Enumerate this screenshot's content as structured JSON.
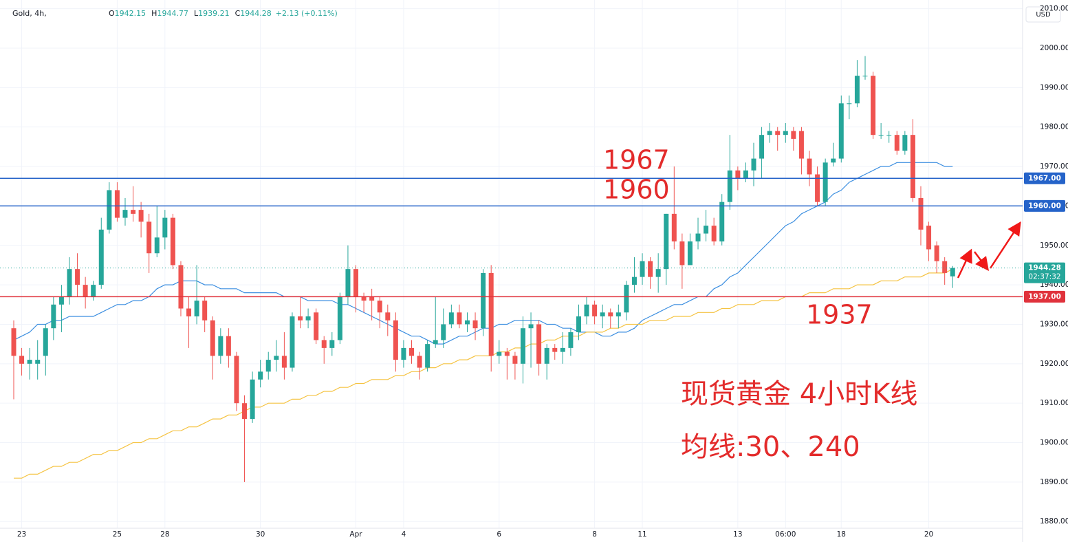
{
  "header": {
    "symbol": "Gold, 4h,",
    "ohlc": [
      [
        "O",
        "1942.15"
      ],
      [
        "H",
        "1944.77"
      ],
      [
        "L",
        "1939.21"
      ],
      [
        "C",
        "1944.28"
      ]
    ],
    "change": "+2.13 (+0.11%)"
  },
  "chart_data": {
    "type": "candlestick",
    "currency": "USD",
    "categories": [
      null,
      "23",
      null,
      null,
      null,
      null,
      null,
      null,
      null,
      null,
      null,
      null,
      null,
      "25",
      null,
      null,
      null,
      null,
      null,
      "28",
      null,
      null,
      null,
      null,
      null,
      null,
      null,
      null,
      null,
      null,
      null,
      "30",
      null,
      null,
      null,
      null,
      null,
      null,
      null,
      null,
      null,
      null,
      null,
      "Apr",
      null,
      null,
      null,
      null,
      null,
      "4",
      null,
      null,
      null,
      null,
      null,
      null,
      null,
      null,
      null,
      null,
      null,
      "6",
      null,
      null,
      null,
      null,
      null,
      null,
      null,
      null,
      null,
      null,
      null,
      "8",
      null,
      null,
      null,
      null,
      null,
      "11",
      null,
      null,
      null,
      null,
      null,
      null,
      null,
      null,
      null,
      null,
      null,
      "13",
      null,
      null,
      null,
      null,
      null,
      "06:00",
      null,
      null,
      null,
      null,
      null,
      null,
      "18",
      null,
      null,
      null,
      null,
      null,
      null,
      null,
      null,
      null,
      null,
      "20",
      null,
      null,
      null
    ],
    "open": [
      1929,
      1922,
      1920,
      1920,
      1922,
      1929,
      1935,
      1937,
      1944,
      1940,
      1937,
      1940,
      1954,
      1964,
      1957,
      1959,
      1959,
      1956,
      1948,
      1952,
      1957,
      1945,
      1934,
      1932,
      1936,
      1931,
      1922,
      1927,
      1922,
      1910,
      1906,
      1916,
      1918,
      1921,
      1922,
      1919,
      1932,
      1931,
      1933,
      1926,
      1924,
      1926,
      1937,
      1944,
      1937,
      1937,
      1936,
      1933,
      1931,
      1921,
      1924,
      1922,
      1919,
      1925,
      1926,
      1930,
      1933,
      1930,
      1931,
      1929,
      1943,
      1922,
      1923,
      1922,
      1920,
      1929,
      1930,
      1920,
      1924,
      1923,
      1924,
      1928,
      1932,
      1935,
      1932,
      1933,
      1932,
      1933,
      1940,
      1942,
      1946,
      1942,
      1944,
      1958,
      1951,
      1945,
      1951,
      1953,
      1955,
      1951,
      1961,
      1969,
      1967,
      1969,
      1972,
      1978,
      1979,
      1978,
      1979,
      1979,
      1972,
      1968,
      1961,
      1971,
      1972,
      1986,
      1986,
      1993,
      1993,
      1978,
      1978,
      1978,
      1974,
      1978,
      1962,
      1955,
      1950,
      1946,
      1942.15
    ],
    "high": [
      1931,
      1924,
      1924,
      1926,
      1930,
      1937,
      1940,
      1947,
      1948,
      1942,
      1941,
      1957,
      1966,
      1966,
      1962,
      1965,
      1961,
      1958,
      1960,
      1959,
      1958,
      1946,
      1937,
      1945,
      1937,
      1932,
      1929,
      1929,
      1923,
      1912,
      1918,
      1921,
      1923,
      1926,
      1928,
      1933,
      1937,
      1934,
      1934,
      1927,
      1928,
      1938,
      1950,
      1945,
      1938,
      1939,
      1937,
      1935,
      1933,
      1926,
      1926,
      1923,
      1926,
      1937,
      1934,
      1935,
      1935,
      1933,
      1933,
      1944,
      1945,
      1926,
      1924,
      1923,
      1932,
      1933,
      1931,
      1925,
      1925,
      1928,
      1929,
      1935,
      1937,
      1936,
      1935,
      1934,
      1935,
      1941,
      1947,
      1948,
      1947,
      1948,
      1958,
      1970,
      1953,
      1953,
      1957,
      1959,
      1957,
      1963,
      1978,
      1970,
      1971,
      1976,
      1980,
      1981,
      1980,
      1981,
      1980,
      1980,
      1974,
      1970,
      1972,
      1976,
      1988,
      1988,
      1997,
      1998,
      1994,
      1981,
      1979,
      1979,
      1979,
      1982,
      1965,
      1956,
      1951,
      1947,
      1944.77
    ],
    "low": [
      1911,
      1917,
      1916,
      1916,
      1917,
      1926,
      1928,
      1935,
      1937,
      1934,
      1936,
      1939,
      1953,
      1956,
      1955,
      1956,
      1952,
      1943,
      1947,
      1949,
      1944,
      1932,
      1924,
      1930,
      1928,
      1916,
      1920,
      1919,
      1908,
      1890,
      1905,
      1914,
      1916,
      1918,
      1916,
      1918,
      1929,
      1929,
      1925,
      1920,
      1922,
      1925,
      1935,
      1933,
      1933,
      1931,
      1929,
      1927,
      1918,
      1919,
      1920,
      1916,
      1918,
      1924,
      1924,
      1929,
      1929,
      1928,
      1926,
      1927,
      1918,
      1920,
      1916,
      1916,
      1915,
      1919,
      1917,
      1916,
      1921,
      1920,
      1922,
      1926,
      1930,
      1930,
      1929,
      1929,
      1929,
      1931,
      1938,
      1940,
      1939,
      1938,
      1940,
      1949,
      1939,
      1945,
      1949,
      1951,
      1950,
      1950,
      1959,
      1964,
      1966,
      1965,
      1967,
      1976,
      1974,
      1976,
      1974,
      1968,
      1965,
      1960,
      1960,
      1970,
      1971,
      1982,
      1985,
      1992,
      1977,
      1977,
      1976,
      1973,
      1973,
      1961,
      1950,
      1946,
      1943,
      1940,
      1939.21
    ],
    "close": [
      1922,
      1920,
      1921,
      1921,
      1929,
      1935,
      1937,
      1944,
      1940,
      1937,
      1940,
      1954,
      1964,
      1957,
      1959,
      1958,
      1956,
      1948,
      1952,
      1957,
      1945,
      1934,
      1932,
      1936,
      1931,
      1922,
      1927,
      1922,
      1910,
      1906,
      1916,
      1918,
      1921,
      1922,
      1919,
      1932,
      1931,
      1932,
      1926,
      1924,
      1926,
      1937,
      1944,
      1937,
      1936,
      1936,
      1933,
      1931,
      1921,
      1924,
      1922,
      1919,
      1925,
      1926,
      1930,
      1933,
      1930,
      1931,
      1929,
      1943,
      1922,
      1923,
      1922,
      1920,
      1929,
      1930,
      1920,
      1924,
      1923,
      1924,
      1928,
      1932,
      1935,
      1932,
      1933,
      1932,
      1933,
      1940,
      1942,
      1946,
      1942,
      1944,
      1958,
      1951,
      1945,
      1951,
      1953,
      1955,
      1951,
      1961,
      1969,
      1967,
      1969,
      1972,
      1978,
      1979,
      1978,
      1979,
      1977,
      1972,
      1968,
      1961,
      1971,
      1972,
      1986,
      1986,
      1993,
      1993,
      1978,
      1978,
      1978,
      1974,
      1978,
      1962,
      1954,
      1949,
      1946,
      1943,
      1944.28
    ],
    "up_color": "#26a69a",
    "down_color": "#ef5350",
    "series": [
      {
        "color": "#3b8ee0",
        "values": [
          1926,
          1927,
          1928,
          1930,
          1930,
          1931,
          1931,
          1932,
          1932,
          1932,
          1932,
          1933,
          1934,
          1935,
          1935,
          1936,
          1936,
          1937,
          1939,
          1940,
          1940,
          1941,
          1941,
          1941,
          1940,
          1940,
          1939,
          1939,
          1939,
          1938,
          1938,
          1938,
          1938,
          1938,
          1937,
          1937,
          1937,
          1936,
          1936,
          1936,
          1936,
          1935,
          1935,
          1934,
          1933,
          1932,
          1931,
          1930,
          1929,
          1928,
          1927,
          1927,
          1926,
          1925,
          1925,
          1926,
          1927,
          1927,
          1928,
          1929,
          1929,
          1930,
          1930,
          1931,
          1931,
          1931,
          1931,
          1930,
          1930,
          1929,
          1929,
          1928,
          1928,
          1928,
          1927,
          1927,
          1928,
          1928,
          1929,
          1931,
          1932,
          1933,
          1934,
          1935,
          1935,
          1936,
          1937,
          1937,
          1939,
          1940,
          1942,
          1943,
          1945,
          1947,
          1949,
          1951,
          1953,
          1955,
          1956,
          1958,
          1959,
          1960,
          1961,
          1963,
          1964,
          1966,
          1967,
          1968,
          1969,
          1970,
          1970,
          1971,
          1971,
          1971,
          1971,
          1971,
          1971,
          1970,
          1970
        ]
      },
      {
        "color": "#f5c342",
        "values": [
          1891,
          1891,
          1892,
          1892,
          1893,
          1894,
          1894,
          1895,
          1895,
          1896,
          1897,
          1897,
          1898,
          1898,
          1899,
          1900,
          1900,
          1901,
          1901,
          1902,
          1903,
          1903,
          1904,
          1904,
          1905,
          1906,
          1906,
          1907,
          1907,
          1908,
          1909,
          1909,
          1910,
          1910,
          1910,
          1911,
          1911,
          1912,
          1912,
          1913,
          1913,
          1914,
          1914,
          1915,
          1915,
          1916,
          1916,
          1916,
          1917,
          1917,
          1918,
          1918,
          1919,
          1919,
          1920,
          1920,
          1921,
          1921,
          1922,
          1922,
          1922,
          1923,
          1923,
          1924,
          1924,
          1925,
          1925,
          1926,
          1926,
          1927,
          1927,
          1927,
          1928,
          1928,
          1928,
          1929,
          1929,
          1930,
          1930,
          1930,
          1931,
          1931,
          1931,
          1932,
          1932,
          1932,
          1933,
          1933,
          1933,
          1934,
          1934,
          1935,
          1935,
          1935,
          1936,
          1936,
          1936,
          1937,
          1937,
          1937,
          1938,
          1938,
          1938,
          1939,
          1939,
          1939,
          1940,
          1940,
          1940,
          1941,
          1941,
          1941,
          1942,
          1942,
          1942,
          1943,
          1943,
          1943,
          1944
        ]
      }
    ],
    "levels": [
      {
        "value": 1967,
        "label": "1967.00",
        "color": "#2563c9",
        "annotation": "1967"
      },
      {
        "value": 1960,
        "label": "1960.00",
        "color": "#2563c9",
        "annotation": "1960"
      },
      {
        "value": 1937,
        "label": "1937.00",
        "color": "#e0323c",
        "annotation": "1937"
      }
    ],
    "last": {
      "value": 1944.28,
      "label": "1944.28",
      "countdown": "02:37:32",
      "color": "#26a69a"
    },
    "annotations": [
      "现货黄金 4小时K线",
      "均线:30、240"
    ],
    "ylim": [
      1878.3,
      2012.2
    ],
    "yticks": [
      {
        "value": 1880,
        "label": "1880.00"
      },
      {
        "value": 1890,
        "label": "1890.00"
      },
      {
        "value": 1900,
        "label": "1900.00"
      },
      {
        "value": 1910,
        "label": "1910.00"
      },
      {
        "value": 1920,
        "label": "1920.00"
      },
      {
        "value": 1930,
        "label": "1930.00"
      },
      {
        "value": 1940,
        "label": "1940.00"
      },
      {
        "value": 1950,
        "label": "1950.00"
      },
      {
        "value": 1960,
        "label": "1960.00"
      },
      {
        "value": 1970,
        "label": "1970.00"
      },
      {
        "value": 1980,
        "label": "1980.00"
      },
      {
        "value": 1990,
        "label": "1990.00"
      },
      {
        "value": 2000,
        "label": "2000.00"
      },
      {
        "value": 2010,
        "label": "2010.00"
      }
    ],
    "grid": true
  }
}
